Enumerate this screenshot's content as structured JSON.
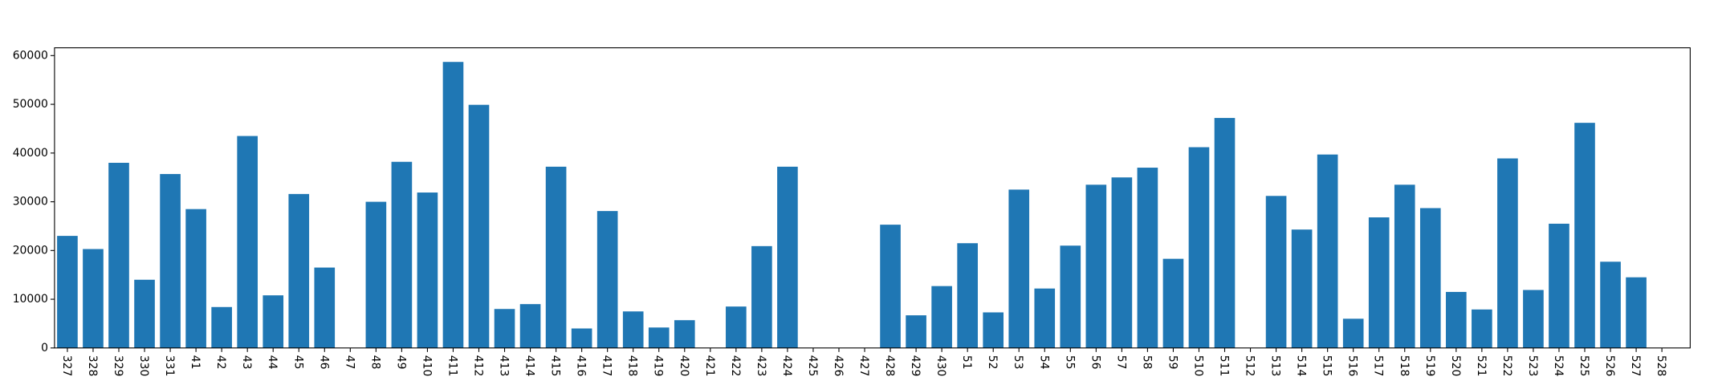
{
  "chart_data": {
    "type": "bar",
    "categories": [
      "327",
      "328",
      "329",
      "330",
      "331",
      "41",
      "42",
      "43",
      "44",
      "45",
      "46",
      "47",
      "48",
      "49",
      "410",
      "411",
      "412",
      "413",
      "414",
      "415",
      "416",
      "417",
      "418",
      "419",
      "420",
      "421",
      "422",
      "423",
      "424",
      "425",
      "426",
      "427",
      "428",
      "429",
      "430",
      "51",
      "52",
      "53",
      "54",
      "55",
      "56",
      "57",
      "58",
      "59",
      "510",
      "511",
      "512",
      "513",
      "514",
      "515",
      "516",
      "517",
      "518",
      "519",
      "520",
      "521",
      "522",
      "523",
      "524",
      "525",
      "526",
      "527",
      "528"
    ],
    "values": [
      23000,
      20300,
      38000,
      14000,
      35700,
      28500,
      8400,
      43500,
      10800,
      31600,
      16500,
      0,
      30000,
      38200,
      31900,
      58700,
      49900,
      8000,
      9000,
      37200,
      4000,
      28100,
      7500,
      4200,
      5700,
      0,
      8500,
      20900,
      37200,
      0,
      0,
      0,
      25300,
      6700,
      12700,
      21500,
      7300,
      32500,
      12200,
      21000,
      33500,
      35000,
      37000,
      18300,
      41200,
      47200,
      0,
      31200,
      24300,
      39700,
      6000,
      26800,
      33500,
      28700,
      11500,
      7900,
      38900,
      11900,
      25500,
      46200,
      17700,
      14500,
      0
    ],
    "ylim": [
      0,
      61600
    ],
    "yticks": [
      0,
      10000,
      20000,
      30000,
      40000,
      50000,
      60000
    ],
    "color": "#1f77b4",
    "grid": false,
    "title": "",
    "xlabel": "",
    "ylabel": ""
  }
}
